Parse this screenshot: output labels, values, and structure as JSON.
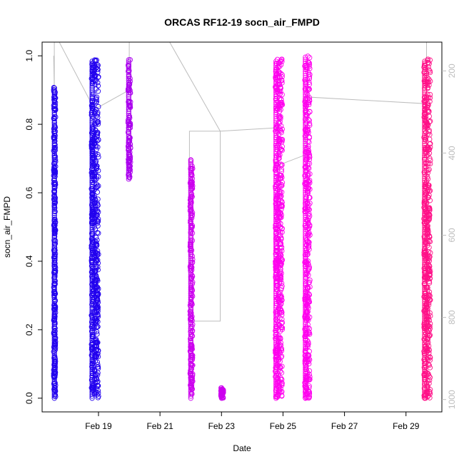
{
  "chart_data": {
    "type": "scatter",
    "title": "ORCAS RF12-19 socn_air_FMPD",
    "xlabel": "Date",
    "ylabel": "socn_air_FMPD",
    "xlim": [
      "2016-02-17 04:00",
      "2016-03-01 04:00"
    ],
    "ylim": [
      -0.04,
      1.04
    ],
    "x_ticks": [
      "Feb 19",
      "Feb 21",
      "Feb 23",
      "Feb 25",
      "Feb 27",
      "Feb 29"
    ],
    "x_tick_dates": [
      "2016-02-19",
      "2016-02-21",
      "2016-02-23",
      "2016-02-25",
      "2016-02-27",
      "2016-02-29"
    ],
    "y_ticks": [
      "0.0",
      "0.2",
      "0.4",
      "0.6",
      "0.8",
      "1.0"
    ],
    "y2_label": "",
    "y2_ticks": [
      "200",
      "400",
      "600",
      "800",
      "1000"
    ],
    "y2_range": [
      1030,
      130
    ],
    "series": [
      {
        "color": "#2200ee",
        "clusters": [
          {
            "start": "2016-02-17 13:00",
            "end": "2016-02-17 14:30",
            "ymin": 0.0,
            "ymax": 0.91
          },
          {
            "start": "2016-02-18 18:30",
            "end": "2016-02-19 00:00",
            "ymin": 0.0,
            "ymax": 0.99
          }
        ]
      },
      {
        "color": "#aa00ee",
        "clusters": [
          {
            "start": "2016-02-19 23:00",
            "end": "2016-02-20 01:00",
            "ymin": 0.64,
            "ymax": 0.99
          }
        ]
      },
      {
        "color": "#cc00ee",
        "clusters": [
          {
            "start": "2016-02-21 23:30",
            "end": "2016-02-22 01:30",
            "ymin": 0.0,
            "ymax": 0.7
          },
          {
            "start": "2016-02-22 23:30",
            "end": "2016-02-23 01:30",
            "ymin": 0.0,
            "ymax": 0.03
          }
        ]
      },
      {
        "color": "#ff00ee",
        "clusters": [
          {
            "start": "2016-02-24 18:00",
            "end": "2016-02-24 23:30",
            "ymin": 0.0,
            "ymax": 0.99
          },
          {
            "start": "2016-02-25 17:00",
            "end": "2016-02-25 21:00",
            "ymin": 0.0,
            "ymax": 1.0
          }
        ]
      },
      {
        "color": "#ff1188",
        "clusters": [
          {
            "start": "2016-02-29 14:00",
            "end": "2016-02-29 19:00",
            "ymin": 0.0,
            "ymax": 0.99
          }
        ]
      }
    ],
    "track": [
      [
        "2016-02-17 13:00",
        1.0
      ],
      [
        "2016-02-17 13:30",
        0.9
      ],
      [
        "2016-02-17 13:30",
        1.05
      ],
      [
        "2016-02-17 16:00",
        1.05
      ],
      [
        "2016-02-18 20:00",
        0.85
      ],
      [
        "2016-02-19 00:00",
        0.85
      ],
      [
        "2016-02-20 00:00",
        0.9
      ],
      [
        "2016-02-20 00:00",
        1.05
      ],
      [
        "2016-02-21 06:00",
        1.05
      ],
      [
        "2016-02-22 23:00",
        0.78
      ],
      [
        "2016-02-22 23:00",
        0.225
      ],
      [
        "2016-02-21 23:00",
        0.225
      ],
      [
        "2016-02-21 23:00",
        0.78
      ],
      [
        "2016-02-22 23:00",
        0.78
      ],
      [
        "2016-02-24 20:00",
        0.79
      ],
      [
        "2016-02-24 20:00",
        0.68
      ],
      [
        "2016-02-25 17:00",
        0.71
      ],
      [
        "2016-02-25 17:00",
        0.88
      ],
      [
        "2016-02-29 16:00",
        0.86
      ],
      [
        "2016-02-29 16:00",
        1.05
      ]
    ]
  }
}
